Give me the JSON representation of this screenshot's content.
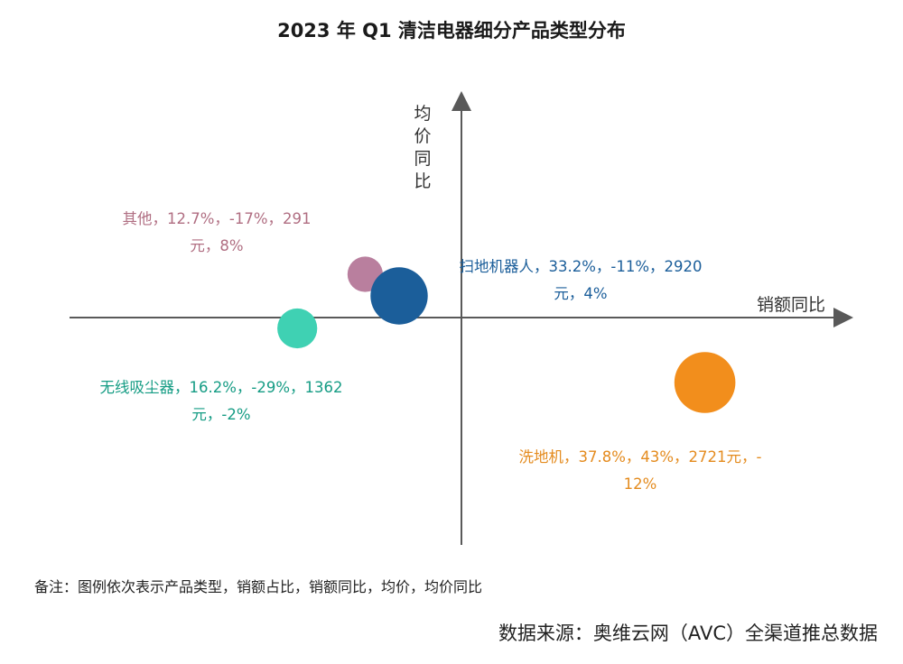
{
  "title": "2023 年 Q1 清洁电器细分产品类型分布",
  "note": "备注：图例依次表示产品类型，销额占比，销额同比，均价，均价同比",
  "source": "数据来源：奥维云网（AVC）全渠道推总数据",
  "chart_data": {
    "type": "bubble",
    "title": "2023 年 Q1 清洁电器细分产品类型分布",
    "xlabel": "销额同比",
    "ylabel": "均价同比",
    "grid": false,
    "axis_color": "#595959",
    "size_field": "销额占比",
    "points": [
      {
        "name": "其他",
        "share": 12.7,
        "x": -17,
        "price": 291,
        "y": 8,
        "label_lines": [
          "其他，12.7%，-17%，291",
          "元，8%"
        ],
        "color": "#B97F9E",
        "label_color": "#B06E82"
      },
      {
        "name": "扫地机器人",
        "share": 33.2,
        "x": -11,
        "price": 2920,
        "y": 4,
        "label_lines": [
          "扫地机器人，33.2%，-11%，2920",
          "元，4%"
        ],
        "color": "#1B5E9A",
        "label_color": "#1B5E9A"
      },
      {
        "name": "无线吸尘器",
        "share": 16.2,
        "x": -29,
        "price": 1362,
        "y": -2,
        "label_lines": [
          "无线吸尘器，16.2%，-29%，1362",
          "元，-2%"
        ],
        "color": "#3FD1B3",
        "label_color": "#159C84"
      },
      {
        "name": "洗地机",
        "share": 37.8,
        "x": 43,
        "price": 2721,
        "y": -12,
        "label_lines": [
          "洗地机，37.8%，43%，2721元，-",
          "12%"
        ],
        "color": "#F28E1C",
        "label_color": "#E48B1E"
      }
    ]
  }
}
